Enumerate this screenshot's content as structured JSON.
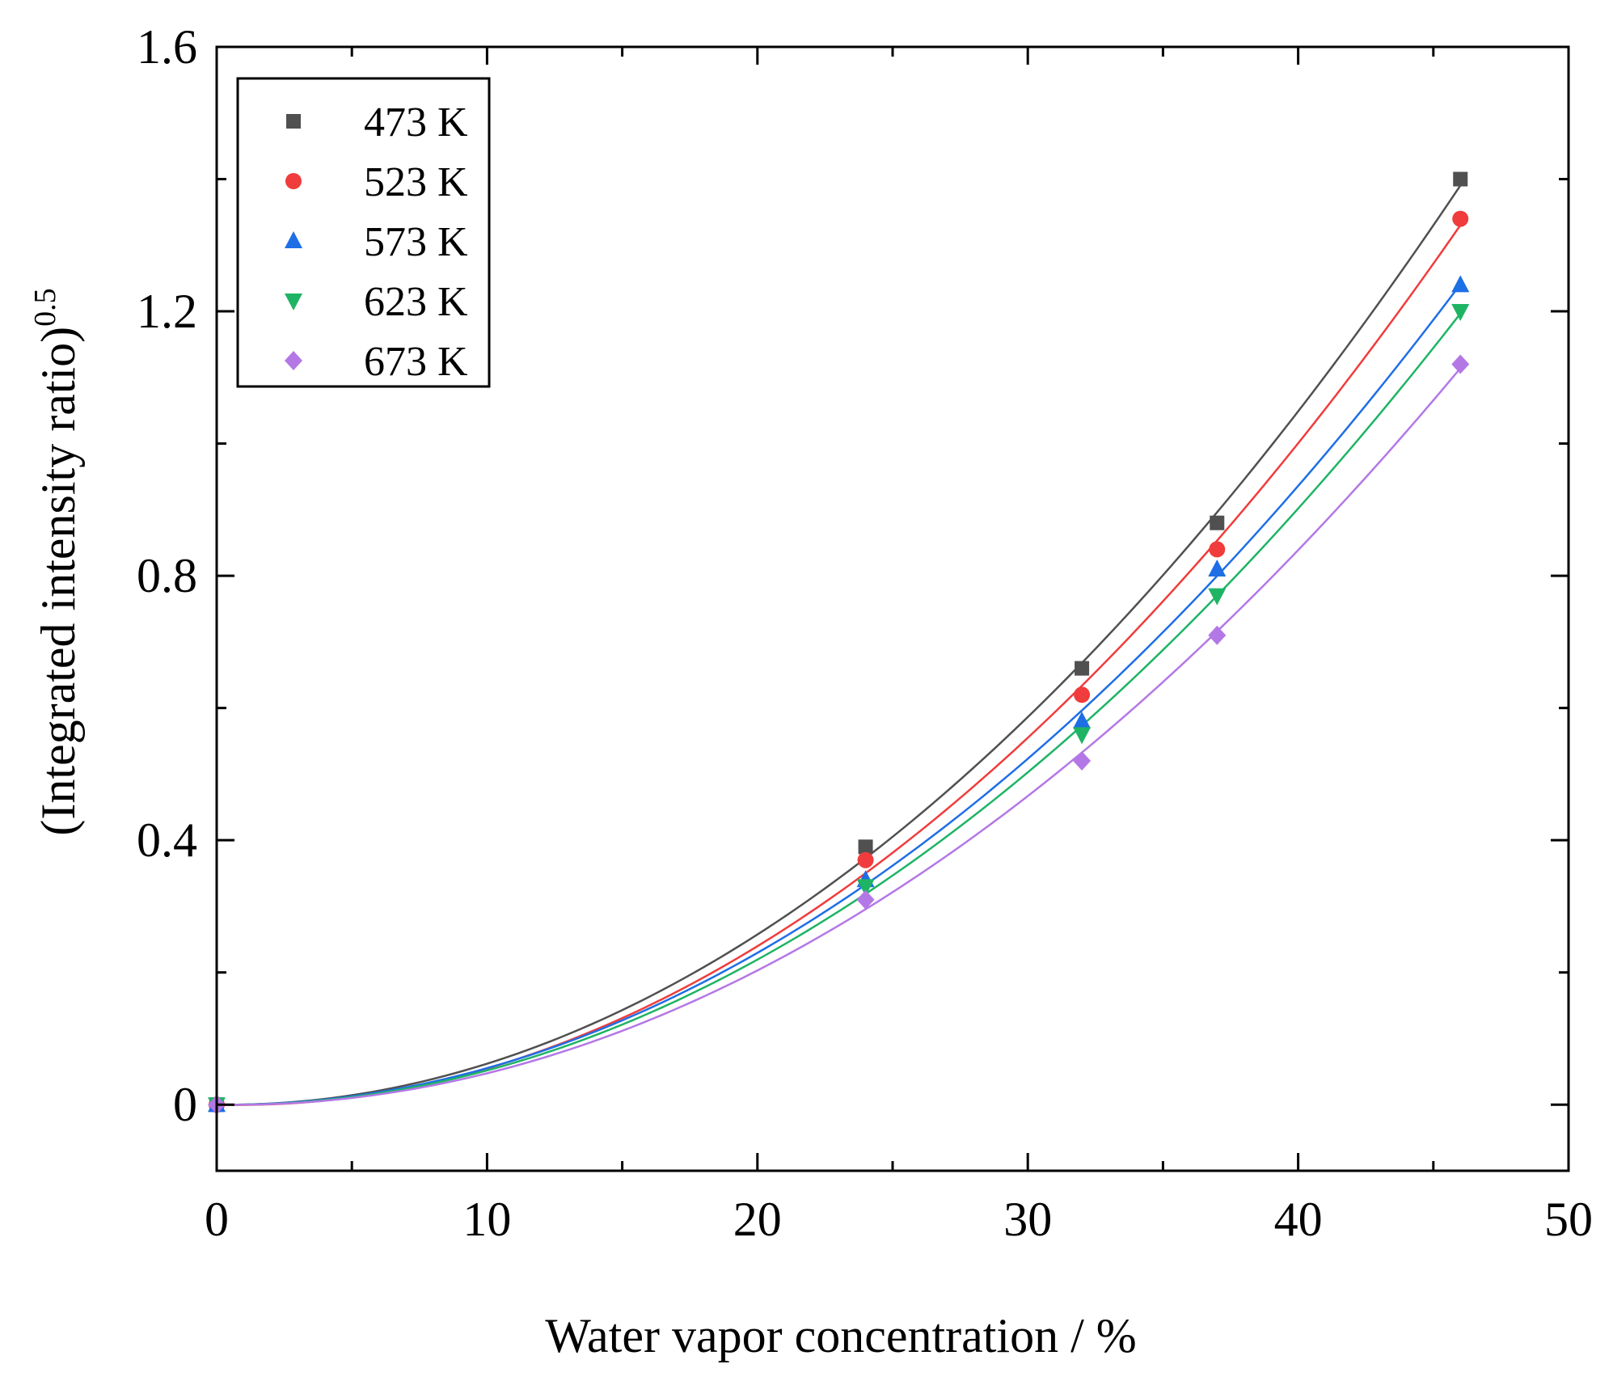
{
  "chart_data": {
    "type": "scatter",
    "xlabel": "Water vapor concentration / %",
    "ylabel": {
      "main": "(Integrated intensity ratio)",
      "superscript": "0.5"
    },
    "xlim": [
      0,
      50
    ],
    "ylim": [
      -0.1,
      1.6
    ],
    "x_ticks": [
      0,
      10,
      20,
      30,
      40,
      50
    ],
    "x_tick_labels": [
      "0",
      "10",
      "20",
      "30",
      "40",
      "50"
    ],
    "y_ticks": [
      0,
      0.4,
      0.8,
      1.2,
      1.6
    ],
    "y_tick_labels": [
      "0",
      "0.4",
      "0.8",
      "1.2",
      "1.6"
    ],
    "grid": false,
    "legend_position": "top-left",
    "fit_lines": "smooth quadratic fit curve per series",
    "series": [
      {
        "name": "473 K",
        "color": "#505050",
        "marker": "square",
        "x": [
          0,
          24,
          32,
          37,
          46
        ],
        "y": [
          0,
          0.39,
          0.66,
          0.88,
          1.4
        ]
      },
      {
        "name": "523 K",
        "color": "#f03c3c",
        "marker": "circle",
        "x": [
          0,
          24,
          32,
          37,
          46
        ],
        "y": [
          0,
          0.37,
          0.62,
          0.84,
          1.34
        ]
      },
      {
        "name": "573 K",
        "color": "#1e6ee6",
        "marker": "triangle-up",
        "x": [
          0,
          24,
          32,
          37,
          46
        ],
        "y": [
          0,
          0.34,
          0.58,
          0.81,
          1.24
        ]
      },
      {
        "name": "623 K",
        "color": "#1eb464",
        "marker": "triangle-down",
        "x": [
          0,
          24,
          32,
          37,
          46
        ],
        "y": [
          0,
          0.33,
          0.56,
          0.77,
          1.2
        ]
      },
      {
        "name": "673 K",
        "color": "#b478e6",
        "marker": "diamond",
        "x": [
          0,
          24,
          32,
          37,
          46
        ],
        "y": [
          0,
          0.31,
          0.52,
          0.71,
          1.12
        ]
      }
    ]
  }
}
